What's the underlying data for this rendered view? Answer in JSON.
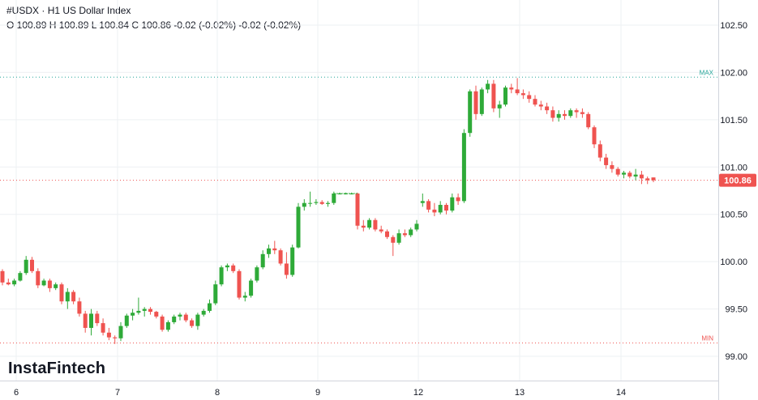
{
  "header": {
    "symbol": "#USDX",
    "separator": "·",
    "title": "H1 US Dollar Index",
    "ohlc_line": "O 100.89 H 100.89 L 100.84 C 100.86 -0.02 (-0.02%) -0.02 (-0.02%)"
  },
  "brand": {
    "name": "InstaFintech"
  },
  "colors": {
    "up": "#26a69a",
    "up_body": "#2eaa38",
    "down": "#ef5350",
    "grid": "#eef0f3",
    "max_line": "#26a69a",
    "min_line": "#ef5350",
    "price_tag_bg": "#ef5350",
    "axis_text": "#131722"
  },
  "chart_data": {
    "type": "candlestick",
    "title": "H1 US Dollar Index",
    "ylim": [
      98.9,
      102.75
    ],
    "y_ticks": [
      99.0,
      99.5,
      100.0,
      100.5,
      101.0,
      101.5,
      102.0,
      102.5
    ],
    "y_tick_labels": [
      "99.00",
      "99.50",
      "100.00",
      "100.50",
      "101.00",
      "101.50",
      "102.00",
      "102.50"
    ],
    "x_ticks": [
      "6",
      "7",
      "8",
      "9",
      "12",
      "13",
      "14"
    ],
    "max_line": {
      "label": "MAX",
      "value": 101.95
    },
    "min_line": {
      "label": "MIN",
      "value": 99.14
    },
    "last_price": {
      "label": "100.86",
      "value": 100.86
    },
    "candles": [
      [
        99.9,
        99.92,
        99.75,
        99.78
      ],
      [
        99.78,
        99.82,
        99.75,
        99.76
      ],
      [
        99.76,
        99.82,
        99.74,
        99.8
      ],
      [
        99.8,
        99.9,
        99.79,
        99.88
      ],
      [
        99.88,
        100.06,
        99.86,
        100.02
      ],
      [
        100.02,
        100.05,
        99.88,
        99.9
      ],
      [
        99.9,
        99.93,
        99.72,
        99.75
      ],
      [
        99.75,
        99.82,
        99.74,
        99.8
      ],
      [
        99.8,
        99.82,
        99.68,
        99.72
      ],
      [
        99.72,
        99.78,
        99.7,
        99.76
      ],
      [
        99.76,
        99.78,
        99.55,
        99.58
      ],
      [
        99.58,
        99.72,
        99.5,
        99.68
      ],
      [
        99.68,
        99.7,
        99.55,
        99.58
      ],
      [
        99.58,
        99.62,
        99.42,
        99.45
      ],
      [
        99.45,
        99.48,
        99.25,
        99.3
      ],
      [
        99.3,
        99.5,
        99.22,
        99.45
      ],
      [
        99.45,
        99.48,
        99.32,
        99.35
      ],
      [
        99.35,
        99.4,
        99.22,
        99.25
      ],
      [
        99.25,
        99.3,
        99.17,
        99.2
      ],
      [
        99.2,
        99.22,
        99.13,
        99.19
      ],
      [
        99.19,
        99.36,
        99.16,
        99.32
      ],
      [
        99.32,
        99.45,
        99.3,
        99.43
      ],
      [
        99.43,
        99.5,
        99.38,
        99.46
      ],
      [
        99.46,
        99.62,
        99.44,
        99.48
      ],
      [
        99.48,
        99.52,
        99.42,
        99.5
      ],
      [
        99.5,
        99.52,
        99.44,
        99.47
      ],
      [
        99.47,
        99.48,
        99.4,
        99.42
      ],
      [
        99.42,
        99.44,
        99.26,
        99.28
      ],
      [
        99.28,
        99.38,
        99.26,
        99.36
      ],
      [
        99.36,
        99.44,
        99.34,
        99.42
      ],
      [
        99.42,
        99.46,
        99.38,
        99.44
      ],
      [
        99.44,
        99.46,
        99.36,
        99.38
      ],
      [
        99.38,
        99.4,
        99.3,
        99.32
      ],
      [
        99.32,
        99.46,
        99.28,
        99.44
      ],
      [
        99.44,
        99.5,
        99.42,
        99.48
      ],
      [
        99.48,
        99.6,
        99.46,
        99.56
      ],
      [
        99.56,
        99.8,
        99.54,
        99.76
      ],
      [
        99.76,
        99.96,
        99.74,
        99.94
      ],
      [
        99.94,
        99.98,
        99.9,
        99.96
      ],
      [
        99.96,
        99.98,
        99.88,
        99.9
      ],
      [
        99.9,
        99.92,
        99.6,
        99.62
      ],
      [
        99.62,
        99.68,
        99.58,
        99.64
      ],
      [
        99.64,
        99.82,
        99.62,
        99.8
      ],
      [
        99.8,
        99.96,
        99.78,
        99.94
      ],
      [
        99.94,
        100.12,
        99.92,
        100.08
      ],
      [
        100.08,
        100.18,
        100.04,
        100.14
      ],
      [
        100.14,
        100.22,
        100.08,
        100.12
      ],
      [
        100.12,
        100.14,
        99.96,
        99.98
      ],
      [
        99.98,
        100.1,
        99.82,
        99.86
      ],
      [
        99.86,
        100.18,
        99.84,
        100.15
      ],
      [
        100.15,
        100.62,
        100.14,
        100.58
      ],
      [
        100.58,
        100.66,
        100.54,
        100.62
      ],
      [
        100.62,
        100.74,
        100.58,
        100.62
      ],
      [
        100.62,
        100.66,
        100.6,
        100.63
      ],
      [
        100.63,
        100.65,
        100.6,
        100.61
      ],
      [
        100.61,
        100.64,
        100.58,
        100.62
      ],
      [
        100.62,
        100.74,
        100.6,
        100.72
      ],
      [
        100.72,
        100.73,
        100.71,
        100.72
      ],
      [
        100.72,
        100.73,
        100.71,
        100.72
      ],
      [
        100.72,
        100.73,
        100.71,
        100.72
      ],
      [
        100.72,
        100.73,
        100.34,
        100.38
      ],
      [
        100.38,
        100.44,
        100.32,
        100.36
      ],
      [
        100.36,
        100.46,
        100.34,
        100.44
      ],
      [
        100.44,
        100.46,
        100.32,
        100.34
      ],
      [
        100.34,
        100.38,
        100.3,
        100.32
      ],
      [
        100.32,
        100.34,
        100.24,
        100.26
      ],
      [
        100.26,
        100.28,
        100.06,
        100.2
      ],
      [
        100.2,
        100.34,
        100.18,
        100.3
      ],
      [
        100.3,
        100.34,
        100.26,
        100.28
      ],
      [
        100.28,
        100.36,
        100.26,
        100.34
      ],
      [
        100.34,
        100.44,
        100.32,
        100.4
      ],
      [
        100.62,
        100.72,
        100.58,
        100.64
      ],
      [
        100.64,
        100.66,
        100.52,
        100.55
      ],
      [
        100.55,
        100.62,
        100.48,
        100.52
      ],
      [
        100.52,
        100.64,
        100.5,
        100.6
      ],
      [
        100.6,
        100.62,
        100.5,
        100.54
      ],
      [
        100.54,
        100.72,
        100.52,
        100.68
      ],
      [
        100.68,
        100.72,
        100.6,
        100.64
      ],
      [
        100.64,
        101.4,
        100.62,
        101.36
      ],
      [
        101.36,
        101.82,
        101.32,
        101.8
      ],
      [
        101.8,
        101.86,
        101.5,
        101.56
      ],
      [
        101.56,
        101.84,
        101.54,
        101.82
      ],
      [
        101.82,
        101.92,
        101.78,
        101.88
      ],
      [
        101.88,
        101.92,
        101.58,
        101.62
      ],
      [
        101.62,
        101.7,
        101.52,
        101.66
      ],
      [
        101.66,
        101.86,
        101.64,
        101.84
      ],
      [
        101.84,
        101.88,
        101.78,
        101.82
      ],
      [
        101.82,
        101.94,
        101.76,
        101.78
      ],
      [
        101.78,
        101.82,
        101.72,
        101.76
      ],
      [
        101.76,
        101.8,
        101.68,
        101.72
      ],
      [
        101.72,
        101.76,
        101.64,
        101.66
      ],
      [
        101.66,
        101.7,
        101.6,
        101.64
      ],
      [
        101.64,
        101.68,
        101.56,
        101.6
      ],
      [
        101.6,
        101.64,
        101.48,
        101.52
      ],
      [
        101.52,
        101.6,
        101.48,
        101.56
      ],
      [
        101.56,
        101.6,
        101.5,
        101.54
      ],
      [
        101.54,
        101.62,
        101.52,
        101.6
      ],
      [
        101.6,
        101.62,
        101.52,
        101.58
      ],
      [
        101.58,
        101.62,
        101.52,
        101.56
      ],
      [
        101.56,
        101.58,
        101.4,
        101.42
      ],
      [
        101.42,
        101.44,
        101.2,
        101.24
      ],
      [
        101.24,
        101.28,
        101.06,
        101.1
      ],
      [
        101.1,
        101.14,
        100.98,
        101.02
      ],
      [
        101.02,
        101.06,
        100.94,
        100.98
      ],
      [
        100.98,
        101.0,
        100.9,
        100.92
      ],
      [
        100.92,
        100.96,
        100.88,
        100.94
      ],
      [
        100.94,
        100.96,
        100.88,
        100.9
      ],
      [
        100.9,
        100.98,
        100.86,
        100.92
      ],
      [
        100.92,
        100.96,
        100.82,
        100.88
      ],
      [
        100.88,
        100.9,
        100.82,
        100.86
      ],
      [
        100.89,
        100.89,
        100.84,
        100.86
      ]
    ],
    "candle_positions": [
      0,
      1,
      2,
      3,
      4,
      5,
      6,
      7,
      8,
      9,
      10,
      11,
      12,
      13,
      14,
      15,
      16,
      17,
      18,
      19,
      20,
      21,
      22,
      23,
      24,
      25,
      26,
      27,
      28,
      29,
      30,
      31,
      32,
      33,
      34,
      35,
      36,
      37,
      38,
      39,
      40,
      41,
      42,
      43,
      44,
      45,
      46,
      47,
      48,
      49,
      50,
      51,
      52,
      53,
      54,
      55,
      56,
      57,
      58,
      59,
      60,
      61,
      62,
      63,
      64,
      65,
      66,
      67,
      68,
      69,
      70,
      71,
      72,
      73,
      74,
      75,
      76,
      77,
      78,
      79,
      80,
      81,
      82,
      83,
      84,
      85,
      86,
      87,
      88,
      89,
      90,
      91,
      92,
      93,
      94,
      95,
      96,
      97,
      98,
      99,
      100,
      101,
      102,
      103,
      104,
      105,
      106,
      107,
      108,
      109,
      110
    ]
  }
}
